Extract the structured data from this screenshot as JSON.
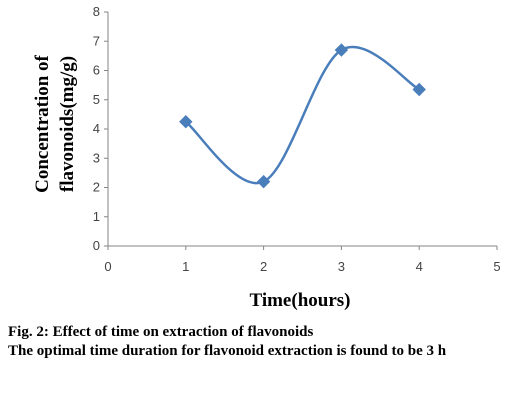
{
  "chart_data": {
    "type": "scatter",
    "x": [
      1,
      2,
      3,
      4
    ],
    "y": [
      4.25,
      2.2,
      6.7,
      5.35
    ],
    "xlabel": "Time(hours)",
    "ylabel_lines": [
      "Concentration of",
      "flavonoids(mg/g)"
    ],
    "xlim": [
      0,
      5
    ],
    "ylim": [
      0,
      8
    ],
    "xticks": [
      "0",
      "1",
      "2",
      "3",
      "4",
      "5"
    ],
    "yticks": [
      "0",
      "1",
      "2",
      "3",
      "4",
      "5",
      "6",
      "7",
      "8"
    ],
    "line_style": "smoothed",
    "marker": "diamond",
    "grid": false,
    "legend": "none",
    "series_color": "#4a7ebb"
  },
  "caption": {
    "title": "Fig. 2: Effect of time on extraction of flavonoids",
    "note": "The optimal time duration for flavonoid extraction is found to be 3 h"
  }
}
